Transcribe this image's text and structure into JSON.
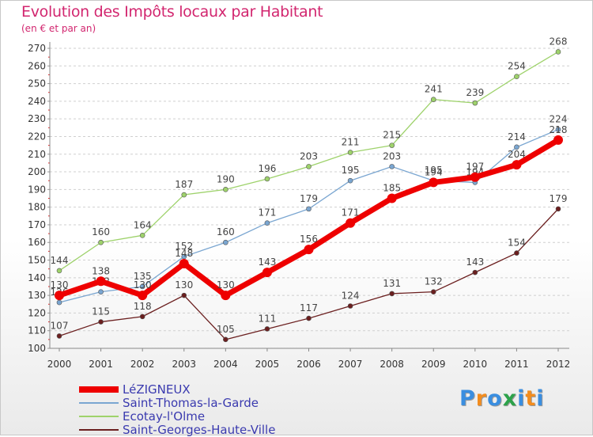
{
  "chart_data": {
    "type": "line",
    "title": "Evolution des Impôts locaux par Habitant",
    "subtitle": "(en € et par an)",
    "x": [
      "2000",
      "2001",
      "2002",
      "2003",
      "2004",
      "2005",
      "2006",
      "2007",
      "2008",
      "2009",
      "2010",
      "2011",
      "2012"
    ],
    "ylim": [
      100,
      270
    ],
    "yticks": [
      100,
      110,
      120,
      130,
      140,
      150,
      160,
      170,
      180,
      190,
      200,
      210,
      220,
      230,
      240,
      250,
      260,
      270
    ],
    "grid": "horizontal dashed",
    "legend": "bottom-left",
    "series": [
      {
        "name": "Saint-Georges-Haute-Ville",
        "color": "#6b1f1f",
        "values": [
          107,
          115,
          118,
          130,
          105,
          111,
          117,
          124,
          131,
          132,
          143,
          154,
          179
        ]
      },
      {
        "name": "Ecotay-l'Olme",
        "color": "#9ed26b",
        "values": [
          144,
          160,
          164,
          187,
          190,
          196,
          203,
          211,
          215,
          241,
          239,
          254,
          268
        ]
      },
      {
        "name": "Saint-Thomas-la-Garde",
        "color": "#7aa6d1",
        "values": [
          126,
          132,
          135,
          152,
          160,
          171,
          179,
          195,
          203,
          195,
          194,
          214,
          224
        ]
      },
      {
        "name": "LéZIGNEUX",
        "color": "#ee0000",
        "values": [
          130,
          138,
          130,
          148,
          130,
          143,
          156,
          171,
          185,
          194,
          197,
          204,
          218
        ]
      }
    ],
    "legend_order": [
      "LéZIGNEUX",
      "Saint-Thomas-la-Garde",
      "Ecotay-l'Olme",
      "Saint-Georges-Haute-Ville"
    ]
  },
  "brand": {
    "letters": [
      {
        "ch": "P",
        "color": "#3a8ee0"
      },
      {
        "ch": "r",
        "color": "#f28c1e"
      },
      {
        "ch": "o",
        "color": "#3a8ee0"
      },
      {
        "ch": "x",
        "color": "#2da24a"
      },
      {
        "ch": "i",
        "color": "#3a8ee0"
      },
      {
        "ch": "t",
        "color": "#f28c1e"
      },
      {
        "ch": "i",
        "color": "#3a8ee0"
      }
    ]
  }
}
